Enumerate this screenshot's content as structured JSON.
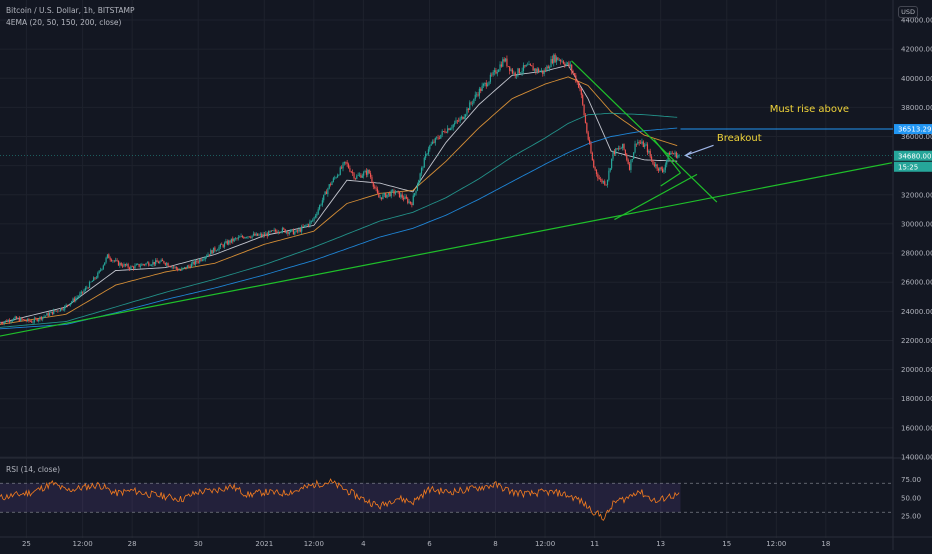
{
  "chart_data": {
    "type": "candlestick",
    "symbol_line": "Bitcoin / U.S. Dollar, 1h, BITSTAMP",
    "indicator_line": "4EMA (20, 50, 150, 200, close)",
    "currency": "USD",
    "price_axis": {
      "range": [
        14000,
        44000
      ],
      "ticks": [
        "44000.00",
        "42000.00",
        "40000.00",
        "38000.00",
        "36000.00",
        "34000.00",
        "32000.00",
        "30000.00",
        "28000.00",
        "26000.00",
        "24000.00",
        "22000.00",
        "20000.00",
        "18000.00",
        "16000.00",
        "14000.00"
      ],
      "tick_values": [
        44000,
        42000,
        40000,
        38000,
        36000,
        34000,
        32000,
        30000,
        28000,
        26000,
        24000,
        22000,
        20000,
        18000,
        16000,
        14000
      ]
    },
    "time_axis": {
      "range_days": [
        0,
        27
      ],
      "labels": [
        "25",
        "12:00",
        "28",
        "30",
        "2021",
        "12:00",
        "4",
        "6",
        "8",
        "12:00",
        "11",
        "13",
        "15",
        "12:00",
        "18"
      ],
      "label_days": [
        0.8,
        2.5,
        4.0,
        6.0,
        8.0,
        9.5,
        11.0,
        13.0,
        15.0,
        16.5,
        18.0,
        20.0,
        22.0,
        23.5,
        25.0
      ]
    },
    "price_tags": [
      {
        "label": "36513.29",
        "value": 36513.29,
        "color": "#2196f3"
      },
      {
        "label": "34680.00",
        "value": 34680.0,
        "color": "#26a69a"
      },
      {
        "label": "15:25",
        "value": 33900,
        "color": "#26a69a"
      }
    ],
    "annotations": [
      {
        "text": "Must rise above",
        "day": 23.3,
        "price": 37700
      },
      {
        "text": "Breakout",
        "day": 21.7,
        "price": 35700
      }
    ],
    "price_series_anchors": [
      [
        0,
        23200
      ],
      [
        0.5,
        23500
      ],
      [
        1,
        23300
      ],
      [
        1.5,
        23800
      ],
      [
        2,
        24300
      ],
      [
        2.5,
        25200
      ],
      [
        3,
        26500
      ],
      [
        3.3,
        27800
      ],
      [
        3.6,
        27300
      ],
      [
        4,
        27000
      ],
      [
        4.5,
        27300
      ],
      [
        5,
        27400
      ],
      [
        5.5,
        26800
      ],
      [
        6,
        27400
      ],
      [
        6.5,
        28200
      ],
      [
        7,
        28800
      ],
      [
        7.5,
        29200
      ],
      [
        8,
        29200
      ],
      [
        8.5,
        29600
      ],
      [
        9,
        29400
      ],
      [
        9.5,
        30200
      ],
      [
        10,
        32600
      ],
      [
        10.5,
        34200
      ],
      [
        10.8,
        33200
      ],
      [
        11.2,
        33600
      ],
      [
        11.5,
        31800
      ],
      [
        12,
        32200
      ],
      [
        12.5,
        31400
      ],
      [
        12.8,
        33700
      ],
      [
        13,
        35200
      ],
      [
        13.5,
        36400
      ],
      [
        14,
        37200
      ],
      [
        14.5,
        39000
      ],
      [
        15,
        40300
      ],
      [
        15.3,
        41300
      ],
      [
        15.6,
        40300
      ],
      [
        16,
        40800
      ],
      [
        16.5,
        40400
      ],
      [
        16.8,
        41400
      ],
      [
        17,
        41300
      ],
      [
        17.3,
        40800
      ],
      [
        17.6,
        39300
      ],
      [
        17.8,
        36400
      ],
      [
        18,
        34000
      ],
      [
        18.2,
        33000
      ],
      [
        18.4,
        32800
      ],
      [
        18.6,
        34900
      ],
      [
        18.9,
        35300
      ],
      [
        19.1,
        33900
      ],
      [
        19.3,
        35700
      ],
      [
        19.6,
        35300
      ],
      [
        19.8,
        34200
      ],
      [
        20.1,
        33600
      ],
      [
        20.3,
        34900
      ],
      [
        20.6,
        34680
      ]
    ],
    "ema_series": [
      {
        "name": "EMA 20",
        "color": "#e0e3eb",
        "values": [
          [
            0,
            23200
          ],
          [
            2,
            24300
          ],
          [
            3.5,
            26800
          ],
          [
            5,
            27000
          ],
          [
            6.5,
            27900
          ],
          [
            8,
            29200
          ],
          [
            9.5,
            29900
          ],
          [
            10.5,
            33000
          ],
          [
            11.5,
            32800
          ],
          [
            12.5,
            32200
          ],
          [
            13.5,
            35600
          ],
          [
            14.5,
            38200
          ],
          [
            15.5,
            40200
          ],
          [
            16.5,
            40500
          ],
          [
            17.2,
            40900
          ],
          [
            17.8,
            38600
          ],
          [
            18.5,
            35000
          ],
          [
            19.5,
            34400
          ],
          [
            20.6,
            34300
          ]
        ]
      },
      {
        "name": "EMA 50",
        "color": "#f6a23a",
        "values": [
          [
            0,
            23100
          ],
          [
            2,
            23800
          ],
          [
            3.5,
            25800
          ],
          [
            5,
            26700
          ],
          [
            6.5,
            27300
          ],
          [
            8,
            28600
          ],
          [
            9.5,
            29500
          ],
          [
            10.5,
            31400
          ],
          [
            11.5,
            32100
          ],
          [
            12.5,
            32300
          ],
          [
            13.5,
            34300
          ],
          [
            14.5,
            36600
          ],
          [
            15.5,
            38600
          ],
          [
            16.5,
            39600
          ],
          [
            17.2,
            40100
          ],
          [
            17.8,
            39500
          ],
          [
            18.5,
            37700
          ],
          [
            19.5,
            36100
          ],
          [
            20.6,
            35300
          ]
        ]
      },
      {
        "name": "EMA 150",
        "color": "#26a69a",
        "values": [
          [
            0,
            22900
          ],
          [
            2,
            23300
          ],
          [
            3.5,
            24300
          ],
          [
            5,
            25300
          ],
          [
            6.5,
            26200
          ],
          [
            8,
            27200
          ],
          [
            9.5,
            28400
          ],
          [
            10.5,
            29300
          ],
          [
            11.5,
            30200
          ],
          [
            12.5,
            30800
          ],
          [
            13.5,
            31800
          ],
          [
            14.5,
            33100
          ],
          [
            15.5,
            34600
          ],
          [
            16.5,
            35900
          ],
          [
            17.2,
            36900
          ],
          [
            17.8,
            37500
          ],
          [
            18.5,
            37600
          ],
          [
            19.5,
            37500
          ],
          [
            20.6,
            37300
          ]
        ]
      },
      {
        "name": "EMA 200",
        "color": "#2196f3",
        "values": [
          [
            0,
            22800
          ],
          [
            2,
            23100
          ],
          [
            3.5,
            23900
          ],
          [
            5,
            24800
          ],
          [
            6.5,
            25600
          ],
          [
            8,
            26500
          ],
          [
            9.5,
            27500
          ],
          [
            10.5,
            28300
          ],
          [
            11.5,
            29100
          ],
          [
            12.5,
            29700
          ],
          [
            13.5,
            30600
          ],
          [
            14.5,
            31700
          ],
          [
            15.5,
            32900
          ],
          [
            16.5,
            34100
          ],
          [
            17.2,
            34900
          ],
          [
            17.8,
            35500
          ],
          [
            18.5,
            36000
          ],
          [
            19.5,
            36400
          ],
          [
            20.6,
            36600
          ]
        ]
      }
    ],
    "trendlines": [
      {
        "name": "support",
        "from": [
          0,
          22300
        ],
        "to": [
          27,
          34200
        ]
      },
      {
        "name": "triangle-upper",
        "from": [
          17.3,
          41200
        ],
        "to": [
          21.7,
          31500
        ]
      },
      {
        "name": "triangle-lower",
        "from": [
          18.6,
          30300
        ],
        "to": [
          21.1,
          33400
        ]
      },
      {
        "name": "mini-upper",
        "from": [
          19.8,
          35800
        ],
        "to": [
          20.6,
          33500
        ]
      },
      {
        "name": "mini-lower",
        "from": [
          20.0,
          32600
        ],
        "to": [
          20.6,
          33500
        ]
      }
    ],
    "horizontal_lines": [
      {
        "name": "resistance",
        "value": 36513.29,
        "from_day": 20.6,
        "color": "#2196f3"
      },
      {
        "name": "current-price",
        "value": 34680,
        "from_day": 0,
        "color": "#26a69a",
        "dotted": true
      }
    ],
    "rsi": {
      "title": "RSI (14, close)",
      "range": [
        0,
        100
      ],
      "ticks": [
        "75.00",
        "50.00",
        "25.00"
      ],
      "tick_values": [
        75,
        50,
        25
      ],
      "band": [
        30,
        70
      ],
      "anchors": [
        [
          0,
          50
        ],
        [
          1,
          58
        ],
        [
          1.6,
          70
        ],
        [
          2,
          60
        ],
        [
          2.5,
          64
        ],
        [
          3,
          68
        ],
        [
          3.5,
          56
        ],
        [
          4,
          60
        ],
        [
          4.5,
          55
        ],
        [
          5,
          52
        ],
        [
          5.5,
          48
        ],
        [
          6,
          58
        ],
        [
          6.5,
          60
        ],
        [
          7,
          66
        ],
        [
          7.5,
          54
        ],
        [
          8,
          58
        ],
        [
          8.5,
          56
        ],
        [
          9,
          60
        ],
        [
          9.5,
          68
        ],
        [
          10,
          72
        ],
        [
          10.5,
          60
        ],
        [
          11,
          48
        ],
        [
          11.5,
          38
        ],
        [
          12,
          50
        ],
        [
          12.5,
          44
        ],
        [
          13,
          62
        ],
        [
          13.5,
          58
        ],
        [
          14,
          60
        ],
        [
          14.5,
          64
        ],
        [
          15,
          68
        ],
        [
          15.5,
          58
        ],
        [
          16,
          55
        ],
        [
          16.5,
          58
        ],
        [
          17,
          56
        ],
        [
          17.5,
          48
        ],
        [
          18,
          30
        ],
        [
          18.3,
          22
        ],
        [
          18.6,
          44
        ],
        [
          19,
          50
        ],
        [
          19.3,
          60
        ],
        [
          19.6,
          52
        ],
        [
          19.9,
          44
        ],
        [
          20.2,
          52
        ],
        [
          20.6,
          54
        ]
      ]
    }
  }
}
